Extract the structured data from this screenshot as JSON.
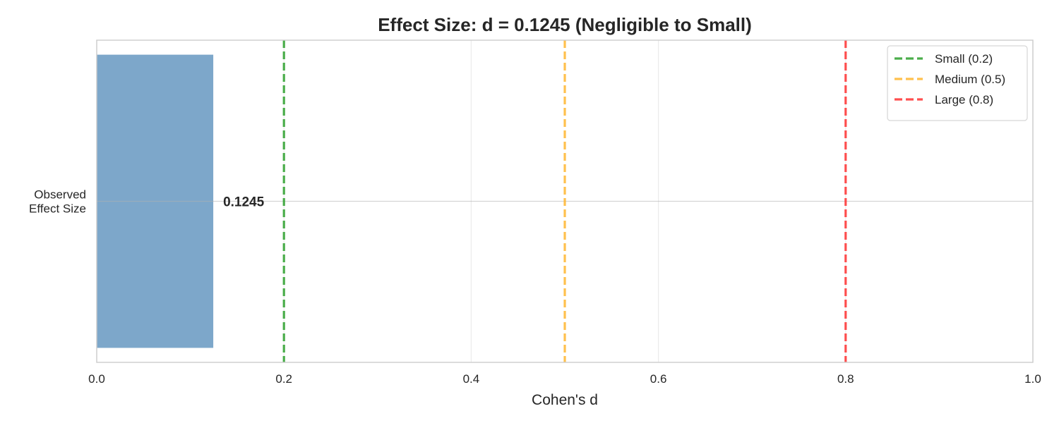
{
  "chart_data": {
    "type": "bar",
    "orientation": "horizontal",
    "title": "Effect Size: d = 0.1245 (Negligible to Small)",
    "xlabel": "Cohen's d",
    "ylabel": "",
    "xlim": [
      0.0,
      1.0
    ],
    "xticks": [
      "0.0",
      "0.2",
      "0.4",
      "0.6",
      "0.8",
      "1.0"
    ],
    "categories": [
      "Observed\nEffect Size"
    ],
    "values": [
      0.1245
    ],
    "value_labels": [
      "0.1245"
    ],
    "bar_color": "#4682b4",
    "grid": true,
    "reference_lines": [
      {
        "name": "Small (0.2)",
        "value": 0.2,
        "color": "#2ca02c",
        "style": "dashed"
      },
      {
        "name": "Medium (0.5)",
        "value": 0.5,
        "color": "#ffb52e",
        "style": "dashed"
      },
      {
        "name": "Large (0.8)",
        "value": 0.8,
        "color": "#ff3030",
        "style": "dashed"
      }
    ],
    "legend_position": "top-right"
  }
}
